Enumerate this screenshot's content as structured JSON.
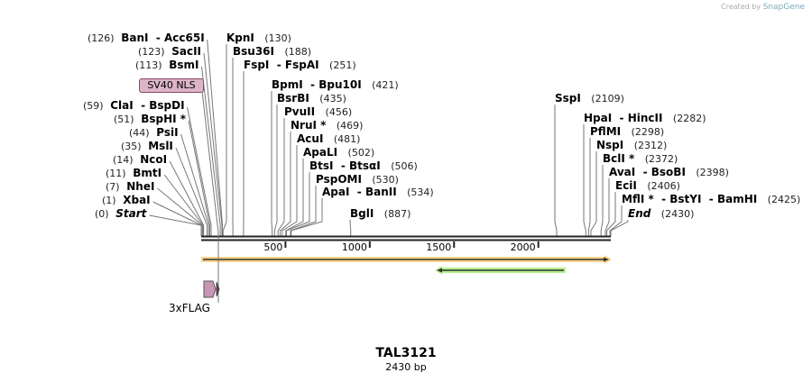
{
  "credit": {
    "prefix": "Created by",
    "brand": "SnapGene"
  },
  "sequence": {
    "name": "TAL3121",
    "length_label": "2430 bp",
    "length": 2430
  },
  "ticks": [
    "500",
    "1000",
    "1500",
    "2000"
  ],
  "features": {
    "nls_label": "SV40 NLS",
    "flag_label": "3xFLAG"
  },
  "sites": [
    {
      "name": "BanI  - Acc65I",
      "pos": "(126)",
      "cut": 126,
      "side": "L"
    },
    {
      "name": "KpnI",
      "pos": "(130)",
      "cut": 130,
      "side": "R"
    },
    {
      "name": "SacII",
      "pos": "(123)",
      "cut": 123,
      "side": "L"
    },
    {
      "name": "Bsu36I",
      "pos": "(188)",
      "cut": 188,
      "side": "R"
    },
    {
      "name": "BsmI",
      "pos": "(113)",
      "cut": 113,
      "side": "L"
    },
    {
      "name": "FspI  - FspAI",
      "pos": "(251)",
      "cut": 251,
      "side": "R"
    },
    {
      "name": "BpmI  - Bpu10I",
      "pos": "(421)",
      "cut": 421,
      "side": "R"
    },
    {
      "name": "BsrBI",
      "pos": "(435)",
      "cut": 435,
      "side": "R"
    },
    {
      "name": "PvuII",
      "pos": "(456)",
      "cut": 456,
      "side": "R"
    },
    {
      "name": "NruI *",
      "pos": "(469)",
      "cut": 469,
      "side": "R"
    },
    {
      "name": "AcuI",
      "pos": "(481)",
      "cut": 481,
      "side": "R"
    },
    {
      "name": "ApaLI",
      "pos": "(502)",
      "cut": 502,
      "side": "R"
    },
    {
      "name": "BtsI  - BtsαI",
      "pos": "(506)",
      "cut": 506,
      "side": "R"
    },
    {
      "name": "PspOMI",
      "pos": "(530)",
      "cut": 530,
      "side": "R"
    },
    {
      "name": "ApaI  - BanII",
      "pos": "(534)",
      "cut": 534,
      "side": "R"
    },
    {
      "name": "BglI",
      "pos": "(887)",
      "cut": 887,
      "side": "R"
    },
    {
      "name": "ClaI  - BspDI",
      "pos": "(59)",
      "cut": 59,
      "side": "L"
    },
    {
      "name": "BspHI *",
      "pos": "(51)",
      "cut": 51,
      "side": "L"
    },
    {
      "name": "PsiI",
      "pos": "(44)",
      "cut": 44,
      "side": "L"
    },
    {
      "name": "MslI",
      "pos": "(35)",
      "cut": 35,
      "side": "L"
    },
    {
      "name": "NcoI",
      "pos": "(14)",
      "cut": 14,
      "side": "L"
    },
    {
      "name": "BmtI",
      "pos": "(11)",
      "cut": 11,
      "side": "L"
    },
    {
      "name": "NheI",
      "pos": "(7)",
      "cut": 7,
      "side": "L"
    },
    {
      "name": "XbaI",
      "pos": "(1)",
      "cut": 1,
      "side": "L"
    },
    {
      "name": "Start",
      "pos": "(0)",
      "cut": 0,
      "side": "L",
      "italic": true
    },
    {
      "name": "SspI",
      "pos": "(2109)",
      "cut": 2109,
      "side": "R"
    },
    {
      "name": "HpaI  - HincII",
      "pos": "(2282)",
      "cut": 2282,
      "side": "R"
    },
    {
      "name": "PflMI",
      "pos": "(2298)",
      "cut": 2298,
      "side": "R"
    },
    {
      "name": "NspI",
      "pos": "(2312)",
      "cut": 2312,
      "side": "R"
    },
    {
      "name": "BclI *",
      "pos": "(2372)",
      "cut": 2372,
      "side": "R"
    },
    {
      "name": "AvaI  - BsoBI",
      "pos": "(2398)",
      "cut": 2398,
      "side": "R"
    },
    {
      "name": "EciI",
      "pos": "(2406)",
      "cut": 2406,
      "side": "R"
    },
    {
      "name": "MflI *  - BstYI  - BamHI",
      "pos": "(2425)",
      "cut": 2425,
      "side": "R"
    },
    {
      "name": "End",
      "pos": "(2430)",
      "cut": 2430,
      "side": "R",
      "italic": true
    }
  ],
  "colors": {
    "orf_fill": "#fcd48c",
    "orf2_fill": "#b4f08c",
    "flag_fill": "#c896b4",
    "nls_fill": "#dcb4c8"
  }
}
